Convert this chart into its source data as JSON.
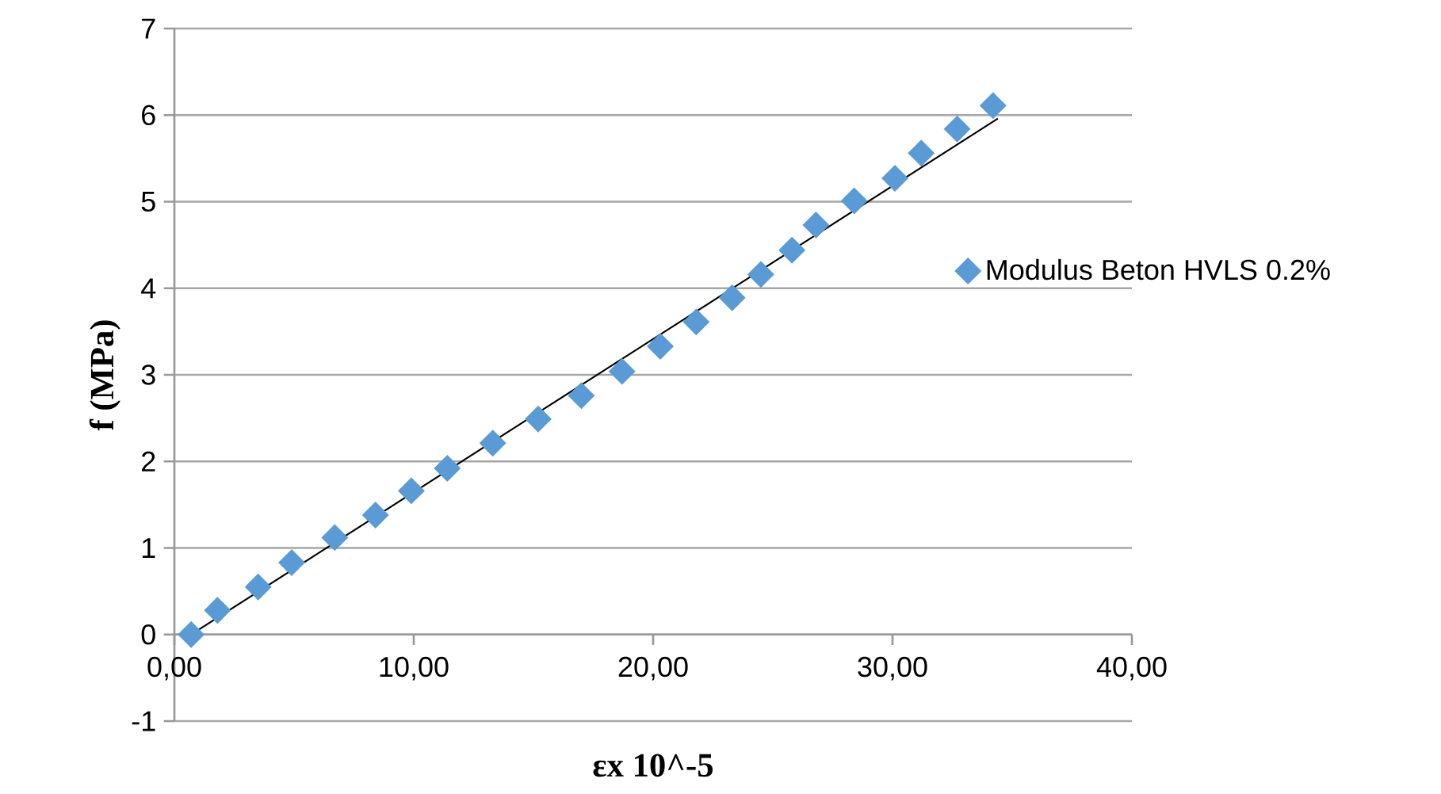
{
  "chart_data": {
    "type": "scatter",
    "xlabel": "εx 10^-5",
    "ylabel": "f (MPa)",
    "series": [
      {
        "name": "Modulus Beton HVLS 0.2%",
        "color": "#5b9bd5",
        "marker": "diamond",
        "x": [
          0.7,
          1.8,
          3.5,
          4.9,
          6.7,
          8.4,
          9.9,
          11.4,
          13.3,
          15.2,
          17.0,
          18.7,
          20.3,
          21.8,
          23.3,
          24.5,
          25.8,
          26.8,
          28.4,
          30.1,
          31.2,
          32.7,
          34.2
        ],
        "values": [
          0,
          0.28,
          0.55,
          0.83,
          1.12,
          1.38,
          1.66,
          1.92,
          2.21,
          2.49,
          2.76,
          3.04,
          3.33,
          3.61,
          3.89,
          4.16,
          4.44,
          4.73,
          5.01,
          5.27,
          5.56,
          5.84,
          6.11
        ]
      },
      {
        "type": "line",
        "color": "#000000",
        "marker": "none",
        "x": [
          0.7,
          34.4
        ],
        "values": [
          0,
          5.96
        ]
      }
    ],
    "xlim": [
      0,
      40
    ],
    "xticks": [
      {
        "value": 0,
        "label": "0,00"
      },
      {
        "value": 10,
        "label": "10,00"
      },
      {
        "value": 20,
        "label": "20,00"
      },
      {
        "value": 30,
        "label": "30,00"
      },
      {
        "value": 40,
        "label": "40,00"
      }
    ],
    "ylim": [
      -1,
      7
    ],
    "yticks": [
      -1,
      0,
      1,
      2,
      3,
      4,
      5,
      6,
      7
    ],
    "grid": "y",
    "legend": "right"
  }
}
